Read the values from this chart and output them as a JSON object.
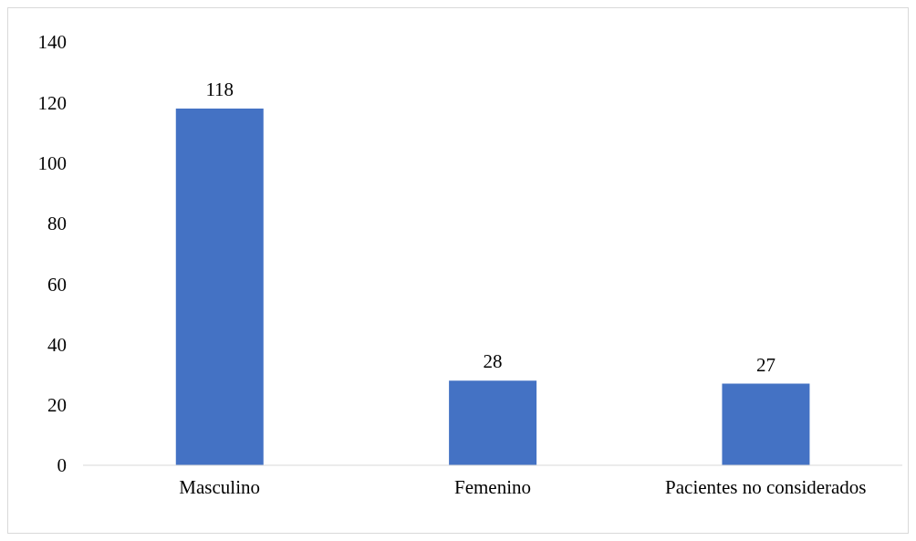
{
  "chart_data": {
    "type": "bar",
    "categories": [
      "Masculino",
      "Femenino",
      "Pacientes no considerados"
    ],
    "values": [
      118,
      28,
      27
    ],
    "color": "#4472c4",
    "ylim": [
      0,
      140
    ],
    "yticks": [
      0,
      20,
      40,
      60,
      80,
      100,
      120,
      140
    ],
    "data_labels": true
  }
}
